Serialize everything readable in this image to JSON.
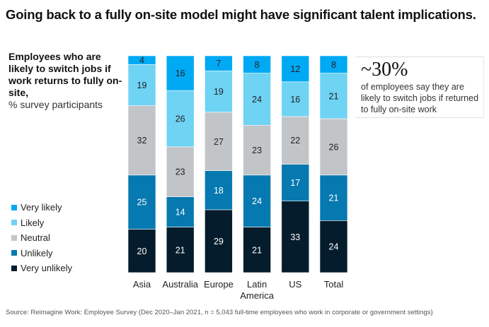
{
  "title": "Going back to a fully on-site model might have significant talent implications.",
  "subtitle": {
    "bold": "Employees who are likely to switch jobs if work returns to fully on-site,",
    "unit": "% survey participants"
  },
  "callout": {
    "big": "~30%",
    "text": "of employees say they are likely to switch jobs if returned to fully on-site work"
  },
  "source": "Source: Reimagine Work: Employee Survey (Dec 2020–Jan 2021, n = 5,043 full-time employees who work in corporate or government settings)",
  "colors": {
    "very_likely": "#00a9f4",
    "likely": "#6fd3f3",
    "neutral": "#c2c5c8",
    "unlikely": "#0679b0",
    "very_unlikely": "#051c2c"
  },
  "chart_data": {
    "type": "bar",
    "stacked": true,
    "title": "Employees who are likely to switch jobs if work returns to fully on-site",
    "ylabel": "% survey participants",
    "xlabel": "",
    "ylim": [
      0,
      100
    ],
    "grid": false,
    "legend_position": "left",
    "categories": [
      "Asia",
      "Australia",
      "Europe",
      "Latin America",
      "US",
      "Total"
    ],
    "category_lines": [
      [
        "Asia"
      ],
      [
        "Australia"
      ],
      [
        "Europe"
      ],
      [
        "Latin",
        "America"
      ],
      [
        "US"
      ],
      [
        "Total"
      ]
    ],
    "series": [
      {
        "name": "Very unlikely",
        "key": "very_unlikely",
        "values": [
          20,
          21,
          29,
          21,
          33,
          24
        ]
      },
      {
        "name": "Unlikely",
        "key": "unlikely",
        "values": [
          25,
          14,
          18,
          24,
          17,
          21
        ]
      },
      {
        "name": "Neutral",
        "key": "neutral",
        "values": [
          32,
          23,
          27,
          23,
          22,
          26
        ]
      },
      {
        "name": "Likely",
        "key": "likely",
        "values": [
          19,
          26,
          19,
          24,
          16,
          21
        ]
      },
      {
        "name": "Very likely",
        "key": "very_likely",
        "values": [
          4,
          16,
          7,
          8,
          12,
          8
        ]
      }
    ],
    "legend": [
      "Very likely",
      "Likely",
      "Neutral",
      "Unlikely",
      "Very unlikely"
    ]
  }
}
